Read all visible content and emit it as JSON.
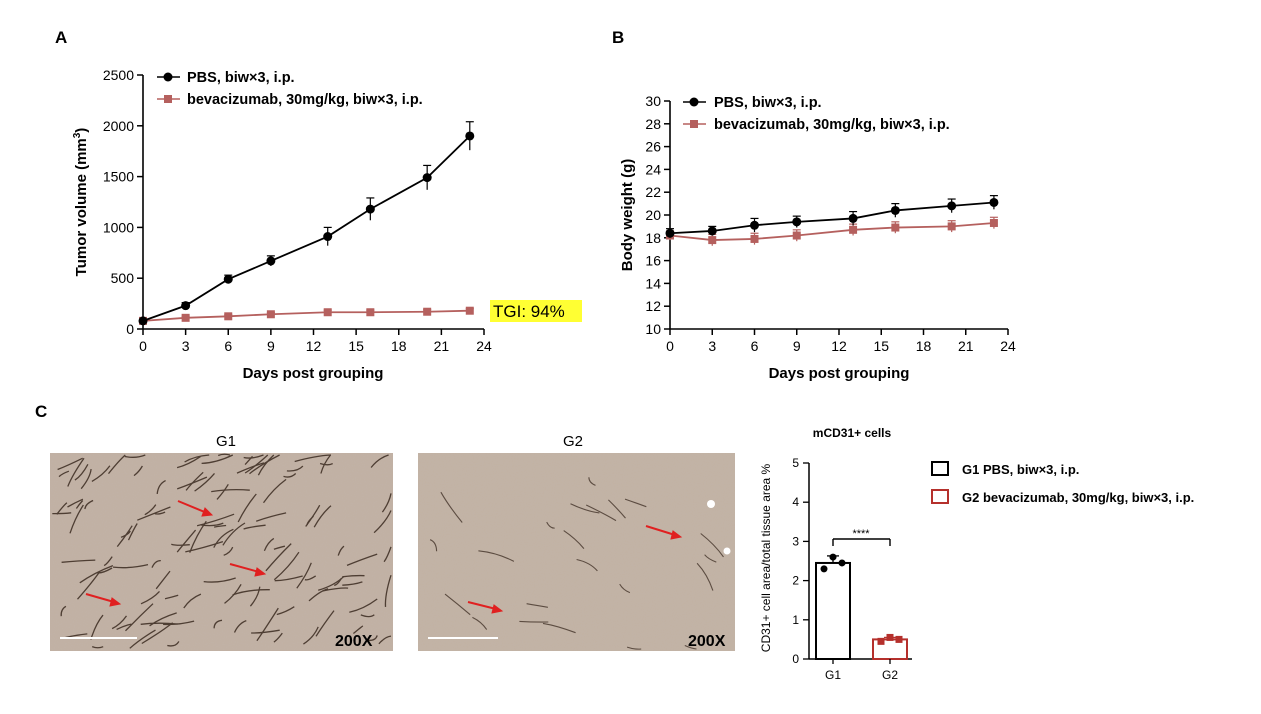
{
  "panels": {
    "a": "A",
    "b": "B",
    "c": "C"
  },
  "chart_data": [
    {
      "type": "line",
      "panel": "A",
      "xlabel": "Days post grouping",
      "ylabel": "Tumor volume (mm",
      "ylabel_sup": "3",
      "ylabel_end": ")",
      "xlim": [
        0,
        24
      ],
      "ylim": [
        0,
        2500
      ],
      "xticks": [
        0,
        3,
        6,
        9,
        12,
        15,
        18,
        21,
        24
      ],
      "yticks": [
        0,
        500,
        1000,
        1500,
        2000,
        2500
      ],
      "x": [
        0,
        3,
        6,
        9,
        13,
        16,
        20,
        23
      ],
      "series": [
        {
          "name_bold": "PBS",
          "name_rest": ", biw×3, i.p.",
          "color": "#000000",
          "marker": "circle",
          "values": [
            80,
            230,
            490,
            670,
            910,
            1180,
            1490,
            1900
          ],
          "errors": [
            10,
            30,
            40,
            50,
            90,
            110,
            120,
            140
          ]
        },
        {
          "name_bold": "",
          "name_rest": "bevacizumab, 30mg/kg, biw×3, i.p.",
          "color": "#b5605e",
          "marker": "square",
          "values": [
            80,
            110,
            125,
            145,
            165,
            165,
            170,
            180
          ],
          "errors": [
            10,
            15,
            15,
            15,
            20,
            20,
            20,
            20
          ]
        }
      ],
      "annotation": "TGI: 94%",
      "annotation_bg": "#ffff33"
    },
    {
      "type": "line",
      "panel": "B",
      "xlabel": "Days post grouping",
      "ylabel": "Body weight (g)",
      "xlim": [
        0,
        24
      ],
      "ylim": [
        10,
        30
      ],
      "xticks": [
        0,
        3,
        6,
        9,
        12,
        15,
        18,
        21,
        24
      ],
      "yticks": [
        10,
        12,
        14,
        16,
        18,
        20,
        22,
        24,
        26,
        28,
        30
      ],
      "x": [
        0,
        3,
        6,
        9,
        13,
        16,
        20,
        23
      ],
      "series": [
        {
          "name_bold": "PBS",
          "name_rest": ", biw×3, i.p.",
          "color": "#000000",
          "marker": "circle",
          "values": [
            18.4,
            18.6,
            19.1,
            19.4,
            19.7,
            20.4,
            20.8,
            21.1
          ],
          "errors": [
            0.4,
            0.4,
            0.6,
            0.5,
            0.6,
            0.6,
            0.6,
            0.6
          ]
        },
        {
          "name_bold": "",
          "name_rest": "bevacizumab, 30mg/kg, biw×3, i.p.",
          "color": "#b5605e",
          "marker": "square",
          "values": [
            18.2,
            17.8,
            17.9,
            18.2,
            18.7,
            18.9,
            19.0,
            19.3
          ],
          "errors": [
            0.4,
            0.5,
            0.5,
            0.5,
            0.5,
            0.5,
            0.5,
            0.5
          ]
        }
      ]
    },
    {
      "type": "bar",
      "panel": "C",
      "title": "mCD31+ cells",
      "ylabel": "CD31+ cell area/total tissue area %",
      "categories": [
        "G1",
        "G2"
      ],
      "ylim": [
        0,
        5
      ],
      "yticks": [
        0,
        1,
        2,
        3,
        4,
        5
      ],
      "values": [
        2.45,
        0.5
      ],
      "errors": [
        0.18,
        0.05
      ],
      "points": [
        [
          2.3,
          2.6,
          2.45
        ],
        [
          0.45,
          0.55,
          0.5
        ]
      ],
      "colors": [
        "#000000",
        "#b5302c"
      ],
      "legend": [
        "G1 PBS, biw×3, i.p.",
        "G2 bevacizumab, 30mg/kg, biw×3, i.p."
      ],
      "significance": "****"
    }
  ],
  "images": [
    {
      "title": "G1",
      "magnification": "200X"
    },
    {
      "title": "G2",
      "magnification": "200X"
    }
  ]
}
